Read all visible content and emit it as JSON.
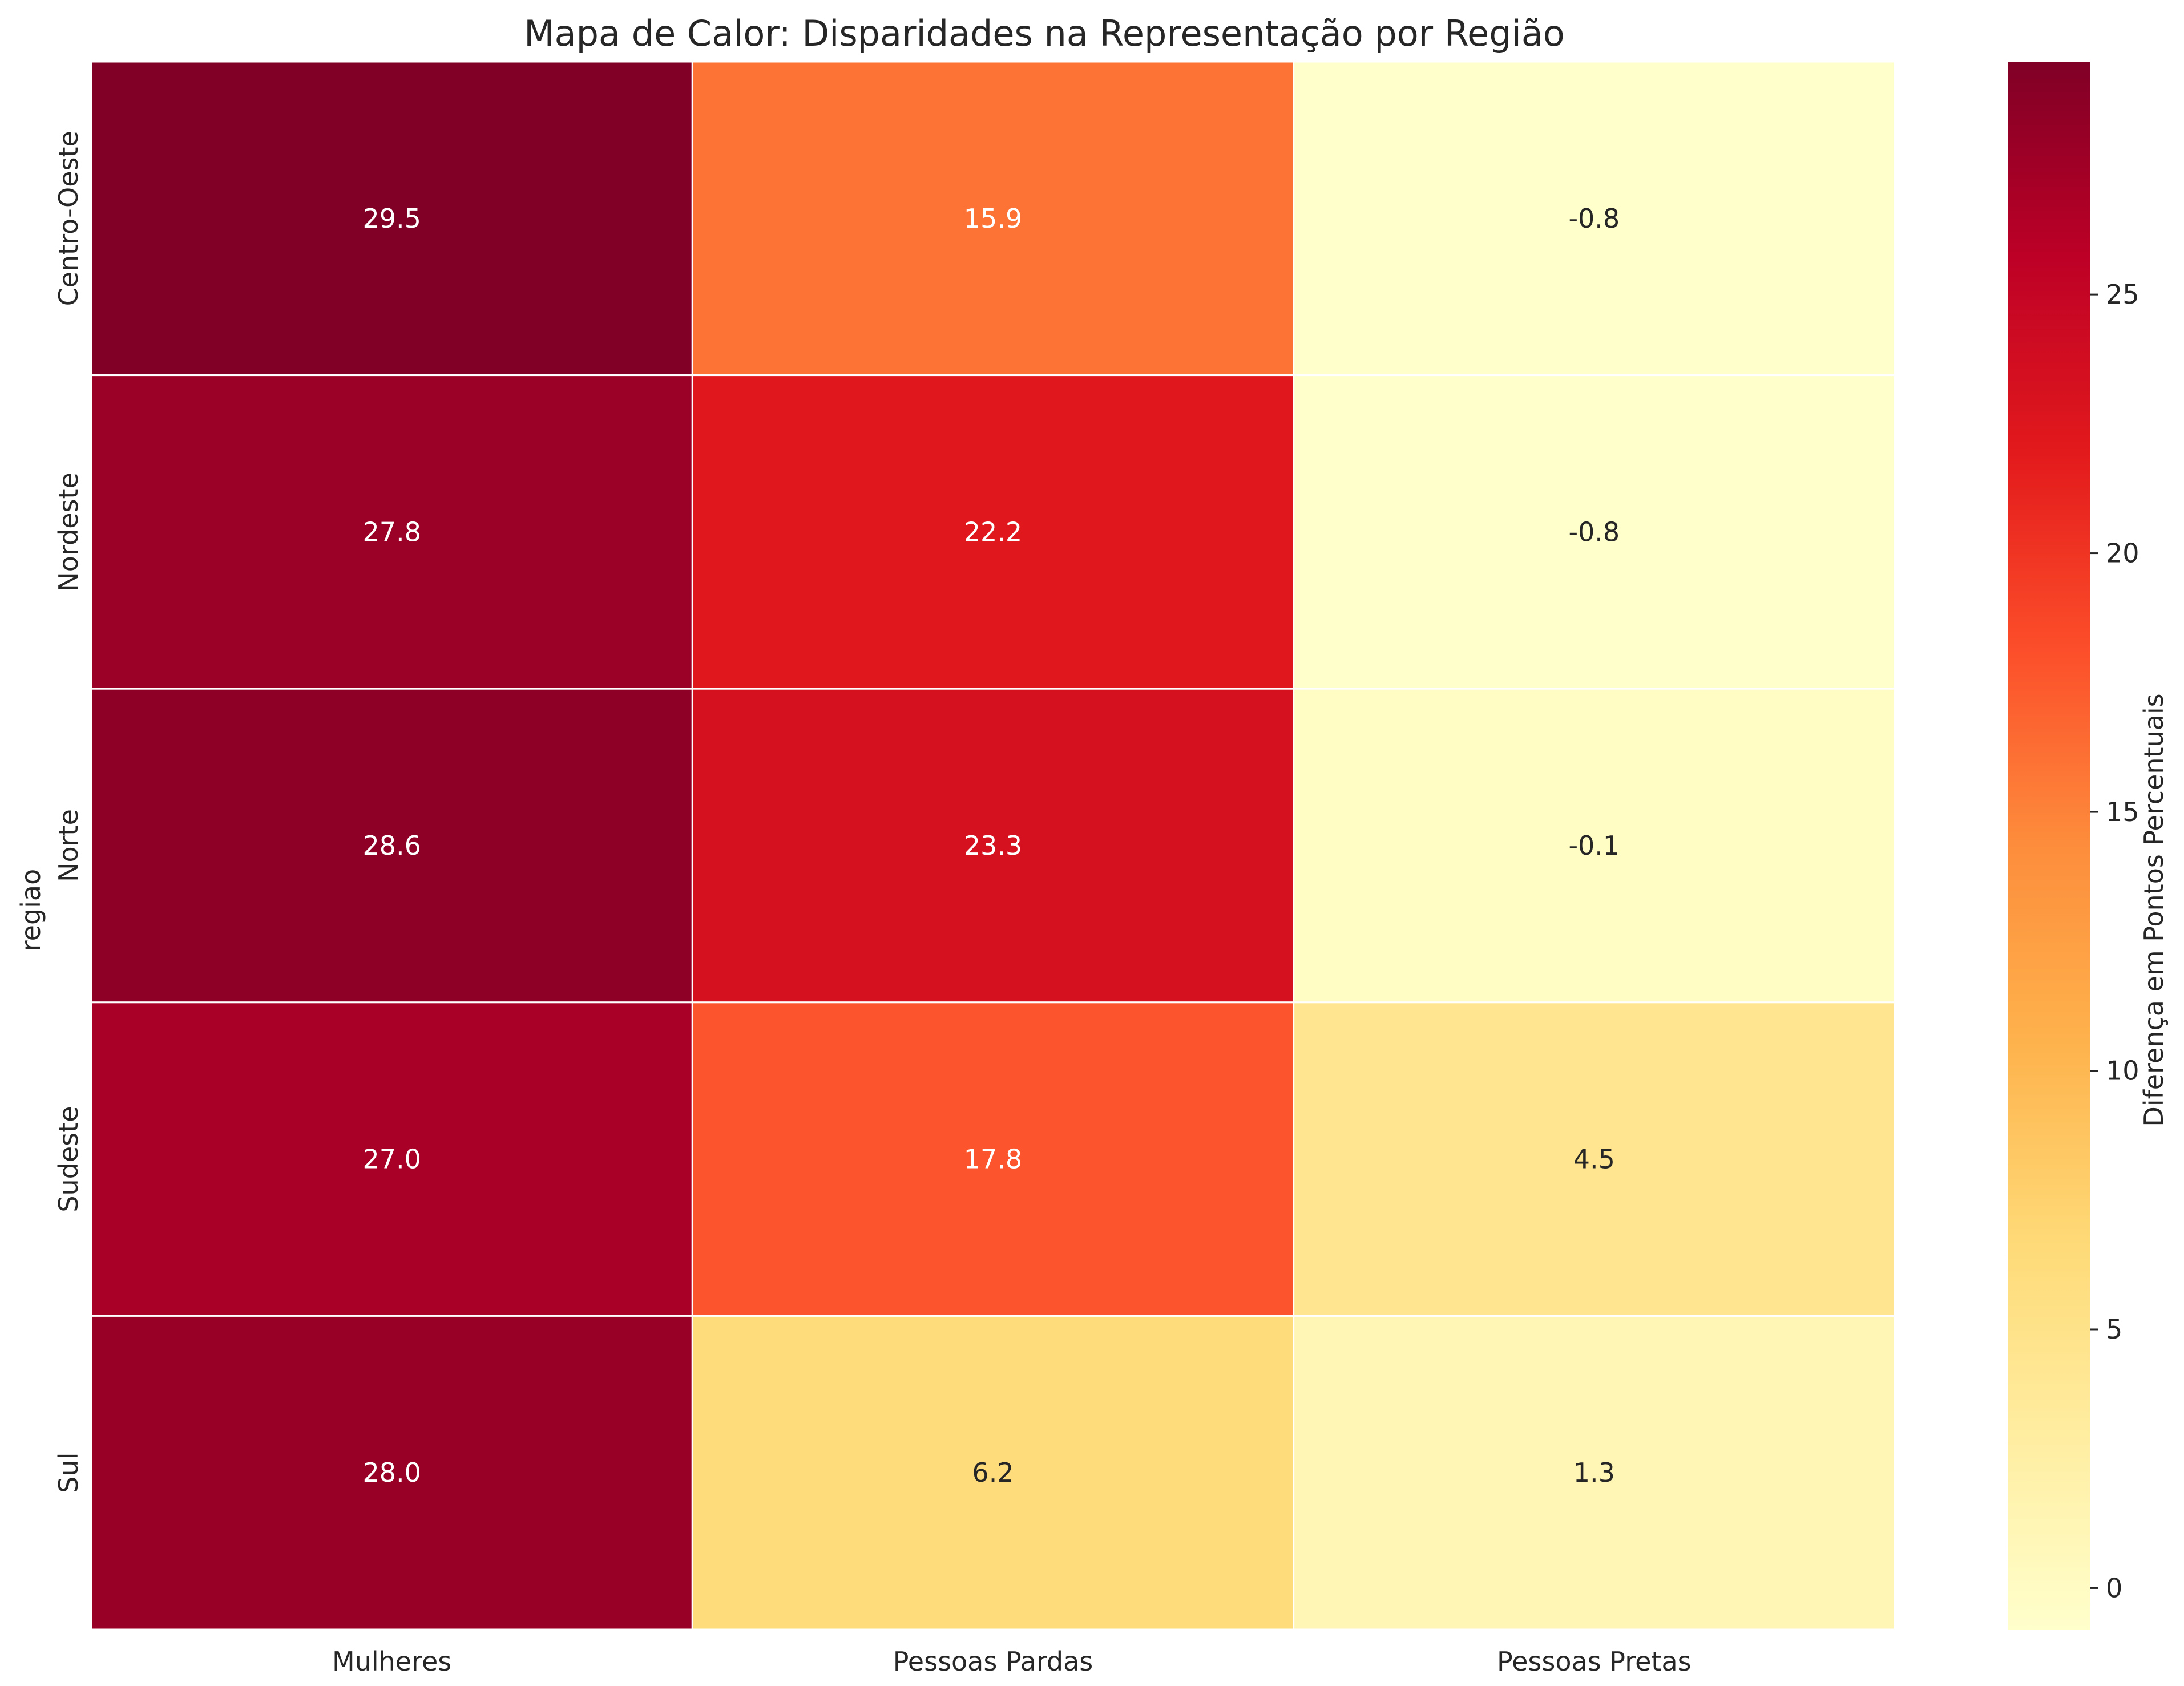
{
  "chart_data": {
    "type": "heatmap",
    "title": "Mapa de Calor: Disparidades na Representação por Região",
    "xlabel": "",
    "ylabel": "regiao",
    "columns": [
      "Mulheres",
      "Pessoas Pardas",
      "Pessoas Pretas"
    ],
    "rows": [
      "Centro-Oeste",
      "Nordeste",
      "Norte",
      "Sudeste",
      "Sul"
    ],
    "values": [
      [
        29.5,
        15.9,
        -0.8
      ],
      [
        27.8,
        22.2,
        -0.8
      ],
      [
        28.6,
        23.3,
        -0.1
      ],
      [
        27.0,
        17.8,
        4.5
      ],
      [
        28.0,
        6.2,
        1.3
      ]
    ],
    "value_format": "0.1f",
    "colormap": "YlOrRd",
    "colormap_stops": [
      "#ffffcc",
      "#ffeda0",
      "#fed976",
      "#feb24c",
      "#fd8d3c",
      "#fc4e2a",
      "#e31a1c",
      "#bd0026",
      "#800026"
    ],
    "color_range": [
      -0.8,
      29.5
    ],
    "colorbar": {
      "label": "Diferença em Pontos Percentuais",
      "ticks": [
        0,
        5,
        10,
        15,
        20,
        25
      ]
    },
    "grid": false,
    "cell_border_color": "#ffffff",
    "annotation_dark_color": "#262626",
    "annotation_light_color": "#ffffff"
  }
}
